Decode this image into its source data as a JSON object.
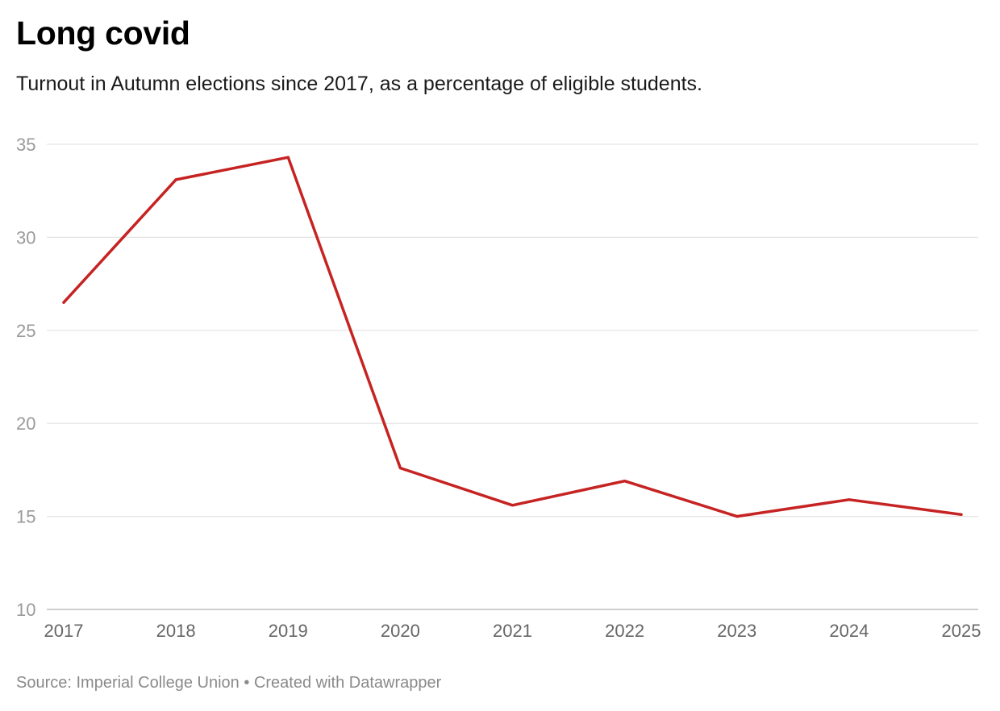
{
  "title": "Long covid",
  "subtitle": "Turnout in Autumn elections since 2017, as a percentage of eligible students.",
  "footer": {
    "source": "Source: Imperial College Union",
    "separator": "•",
    "credit": "Created with Datawrapper"
  },
  "chart_data": {
    "type": "line",
    "title": "Long covid",
    "subtitle": "Turnout in Autumn elections since 2017, as a percentage of eligible students.",
    "xlabel": "",
    "ylabel": "",
    "categories": [
      "2017",
      "2018",
      "2019",
      "2020",
      "2021",
      "2022",
      "2023",
      "2024",
      "2025"
    ],
    "series": [
      {
        "name": "Turnout",
        "color": "#c62323",
        "values": [
          26.5,
          33.1,
          34.3,
          17.6,
          15.6,
          16.9,
          15.0,
          15.9,
          15.1
        ]
      }
    ],
    "ylim": [
      10,
      35
    ],
    "yticks": [
      10,
      15,
      20,
      25,
      30,
      35
    ],
    "grid": true,
    "gridColor": "#e3e3e3",
    "legend": "none"
  }
}
